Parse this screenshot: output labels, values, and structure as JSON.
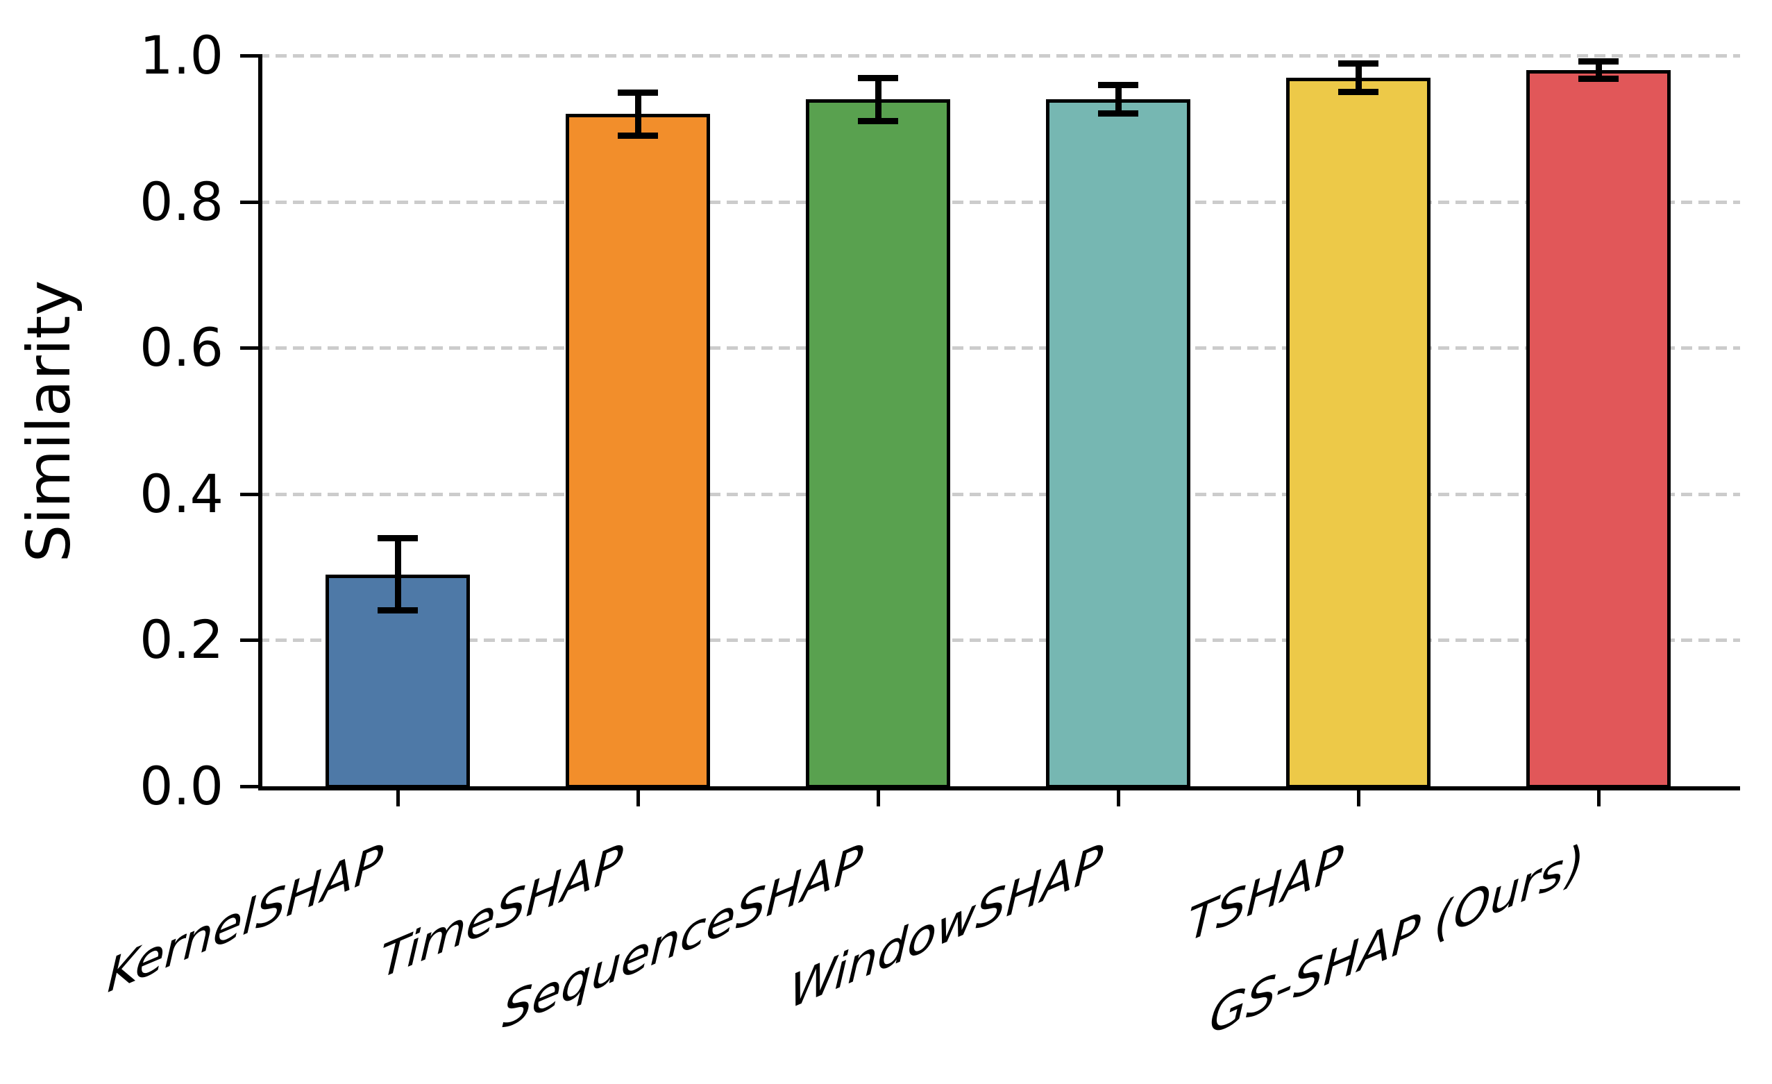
{
  "chart_data": {
    "type": "bar",
    "title": "",
    "xlabel": "",
    "ylabel": "Similarity",
    "categories": [
      "KernelSHAP",
      "TimeSHAP",
      "SequenceSHAP",
      "WindowSHAP",
      "TSHAP",
      "GS-SHAP (Ours)"
    ],
    "values": [
      0.29,
      0.92,
      0.94,
      0.94,
      0.97,
      0.98
    ],
    "errors": [
      0.05,
      0.03,
      0.03,
      0.02,
      0.02,
      0.012
    ],
    "bar_colors": [
      "#4e79a7",
      "#f28e2b",
      "#59a14f",
      "#76b7b2",
      "#edc948",
      "#e15759"
    ],
    "bar_edge_color": "#000000",
    "error_bar_color": "#000000",
    "grid_color": "#cccccc",
    "grid_style": "dashed horizontal",
    "axis_color": "#000000",
    "ytick_labels": [
      "0.0",
      "0.2",
      "0.4",
      "0.6",
      "0.8",
      "1.0"
    ],
    "ytick_values": [
      0.0,
      0.2,
      0.4,
      0.6,
      0.8,
      1.0
    ],
    "ylim": [
      0.0,
      1.0
    ],
    "legend_position": "none"
  }
}
